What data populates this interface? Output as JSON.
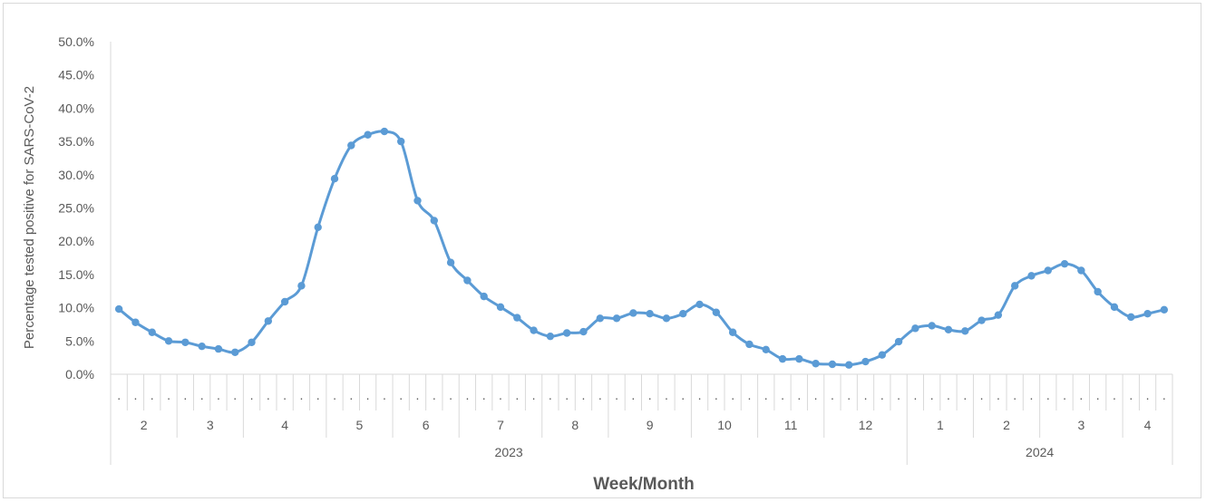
{
  "chart_data": {
    "type": "line",
    "xlabel": "Week/Month",
    "ylabel": "Percentage tested positive for SARS-CoV-2",
    "ylim": [
      0,
      0.5
    ],
    "yticks": [
      "0.0%",
      "5.0%",
      "10.0%",
      "15.0%",
      "20.0%",
      "25.0%",
      "30.0%",
      "35.0%",
      "40.0%",
      "45.0%",
      "50.0%"
    ],
    "week_tick_label": ".",
    "months": [
      {
        "label": "2",
        "weeks": 4
      },
      {
        "label": "3",
        "weeks": 4
      },
      {
        "label": "4",
        "weeks": 5
      },
      {
        "label": "5",
        "weeks": 4
      },
      {
        "label": "6",
        "weeks": 4
      },
      {
        "label": "7",
        "weeks": 5
      },
      {
        "label": "8",
        "weeks": 4
      },
      {
        "label": "9",
        "weeks": 5
      },
      {
        "label": "10",
        "weeks": 4
      },
      {
        "label": "11",
        "weeks": 4
      },
      {
        "label": "12",
        "weeks": 5
      },
      {
        "label": "1",
        "weeks": 4
      },
      {
        "label": "2",
        "weeks": 4
      },
      {
        "label": "3",
        "weeks": 5
      },
      {
        "label": "4",
        "weeks": 3
      }
    ],
    "years": [
      {
        "label": "2023",
        "weeks": 48
      },
      {
        "label": "2024",
        "weeks": 16
      }
    ],
    "grid": false,
    "line_color": "#5b9bd5",
    "values": [
      0.098,
      0.078,
      0.063,
      0.05,
      0.048,
      0.042,
      0.038,
      0.033,
      0.048,
      0.08,
      0.109,
      0.133,
      0.221,
      0.294,
      0.344,
      0.36,
      0.365,
      0.35,
      0.261,
      0.231,
      0.168,
      0.141,
      0.117,
      0.101,
      0.085,
      0.066,
      0.057,
      0.062,
      0.064,
      0.084,
      0.084,
      0.092,
      0.091,
      0.084,
      0.091,
      0.105,
      0.093,
      0.063,
      0.045,
      0.037,
      0.023,
      0.023,
      0.016,
      0.015,
      0.014,
      0.019,
      0.029,
      0.049,
      0.069,
      0.073,
      0.067,
      0.065,
      0.081,
      0.089,
      0.133,
      0.148,
      0.156,
      0.166,
      0.156,
      0.124,
      0.101,
      0.086,
      0.091,
      0.097
    ]
  }
}
